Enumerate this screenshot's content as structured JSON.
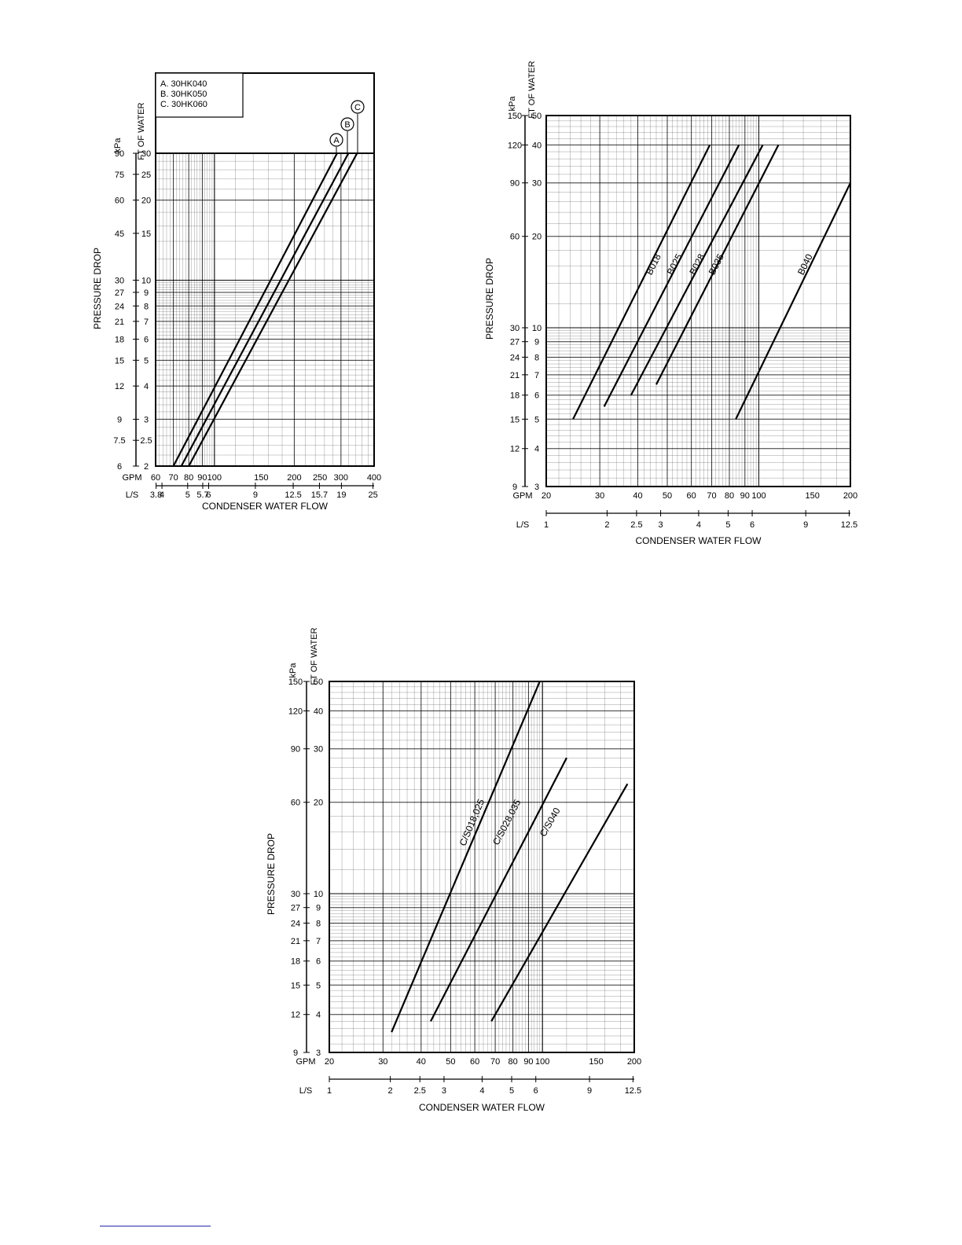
{
  "chart_data": [
    {
      "type": "line",
      "id": "chart-a",
      "xscale": "log",
      "yscale": "log",
      "xlabel": "CONDENSER WATER FLOW",
      "ylabel": "PRESSURE DROP",
      "y_units_left": "kPa",
      "y_units_right": "FT OF WATER",
      "x_units_top": "GPM",
      "x_units_bottom": "L/S",
      "xlim": [
        60,
        400
      ],
      "ylim": [
        2,
        30
      ],
      "x_ticks_gpm": [
        "60",
        "70",
        "80",
        "90",
        "100",
        "150",
        "200",
        "250",
        "300",
        "400"
      ],
      "x_ticks_ls": [
        "3.8",
        "4",
        "5",
        "5.7",
        "6",
        "9",
        "12.5",
        "15.7",
        "19",
        "25"
      ],
      "y_ticks_ft": [
        "30",
        "25",
        "20",
        "15",
        "10",
        "9",
        "8",
        "7",
        "6",
        "5",
        "4",
        "3",
        "2.5",
        "2"
      ],
      "y_ticks_kpa": [
        "90",
        "75",
        "60",
        "45",
        "30",
        "27",
        "24",
        "21",
        "18",
        "15",
        "12",
        "9",
        "7.5",
        "6"
      ],
      "legend": [
        "A. 30HK040",
        "B. 30HK050",
        "C. 30HK060"
      ],
      "legend_position": "top-left",
      "grid": true,
      "series": [
        {
          "name": "A",
          "x": [
            70,
            290
          ],
          "y": [
            2,
            30
          ]
        },
        {
          "name": "B",
          "x": [
            75,
            320
          ],
          "y": [
            2,
            30
          ]
        },
        {
          "name": "C",
          "x": [
            80,
            345
          ],
          "y": [
            2,
            30
          ]
        }
      ]
    },
    {
      "type": "line",
      "id": "chart-b",
      "xscale": "log",
      "yscale": "log",
      "xlabel": "CONDENSER WATER FLOW",
      "ylabel": "PRESSURE DROP",
      "y_units_left": "kPa",
      "y_units_right": "FT OF WATER",
      "x_units_top": "GPM",
      "x_units_bottom": "L/S",
      "xlim": [
        20,
        200
      ],
      "ylim": [
        3,
        50
      ],
      "x_ticks_gpm": [
        "20",
        "30",
        "40",
        "50",
        "60",
        "70",
        "80",
        "90",
        "100",
        "150",
        "200"
      ],
      "x_ticks_ls": [
        "1",
        "2",
        "2.5",
        "3",
        "4",
        "5",
        "6",
        "9",
        "12.5"
      ],
      "y_ticks_ft": [
        "50",
        "40",
        "30",
        "20",
        "10",
        "9",
        "8",
        "7",
        "6",
        "5",
        "4",
        "3"
      ],
      "y_ticks_kpa": [
        "150",
        "120",
        "90",
        "60",
        "30",
        "27",
        "24",
        "21",
        "18",
        "15",
        "12",
        "9"
      ],
      "grid": true,
      "series": [
        {
          "name": "B018",
          "x": [
            24.5,
            69
          ],
          "y": [
            5,
            40
          ]
        },
        {
          "name": "B025",
          "x": [
            31,
            86
          ],
          "y": [
            5.5,
            40
          ]
        },
        {
          "name": "B028",
          "x": [
            38,
            103
          ],
          "y": [
            6,
            40
          ]
        },
        {
          "name": "B035",
          "x": [
            46,
            116
          ],
          "y": [
            6.5,
            40
          ]
        },
        {
          "name": "B040",
          "x": [
            84,
            200
          ],
          "y": [
            5,
            30
          ]
        }
      ]
    },
    {
      "type": "line",
      "id": "chart-c",
      "xscale": "log",
      "yscale": "log",
      "xlabel": "CONDENSER WATER FLOW",
      "ylabel": "PRESSURE DROP",
      "y_units_left": "kPa",
      "y_units_right": "FT OF WATER",
      "x_units_top": "GPM",
      "x_units_bottom": "L/S",
      "xlim": [
        20,
        200
      ],
      "ylim": [
        3,
        50
      ],
      "x_ticks_gpm": [
        "20",
        "30",
        "40",
        "50",
        "60",
        "70",
        "80",
        "90",
        "100",
        "150",
        "200"
      ],
      "x_ticks_ls": [
        "1",
        "2",
        "2.5",
        "3",
        "4",
        "5",
        "6",
        "9",
        "12.5"
      ],
      "y_ticks_ft": [
        "50",
        "40",
        "30",
        "20",
        "10",
        "9",
        "8",
        "7",
        "6",
        "5",
        "4",
        "3"
      ],
      "y_ticks_kpa": [
        "150",
        "120",
        "90",
        "60",
        "30",
        "27",
        "24",
        "21",
        "18",
        "15",
        "12",
        "9"
      ],
      "grid": true,
      "series": [
        {
          "name": "C/S018,025",
          "x": [
            32,
            98
          ],
          "y": [
            3.5,
            50
          ]
        },
        {
          "name": "C/S028,035",
          "x": [
            43,
            120
          ],
          "y": [
            3.8,
            28
          ]
        },
        {
          "name": "C/S040",
          "x": [
            68,
            190
          ],
          "y": [
            3.8,
            23
          ]
        }
      ]
    }
  ]
}
